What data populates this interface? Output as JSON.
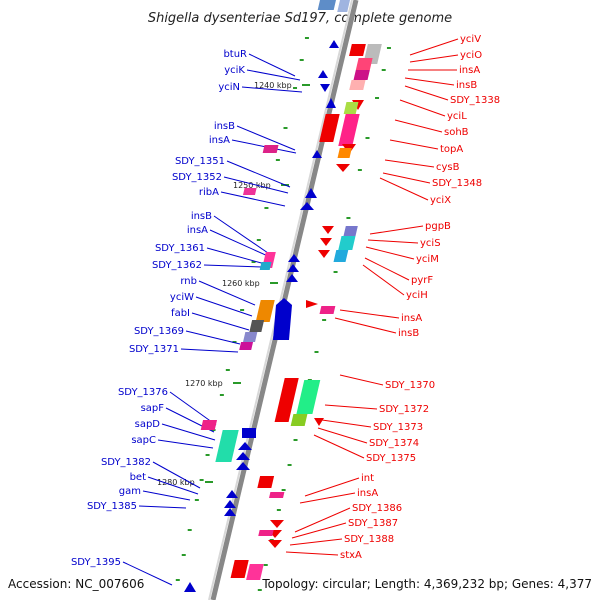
{
  "title": "Shigella dysenteriae Sd197, complete genome",
  "footer": {
    "accession": "Accession: NC_007606",
    "topology": "Topology: circular; Length: 4,369,232 bp; Genes: 4,377"
  },
  "colors": {
    "left_strand": "#0000cc",
    "right_strand": "#ee0000",
    "backbone": "#888888",
    "ticks": "#2a9a2a"
  },
  "ruler": [
    "1240 kbp",
    "1250 kbp",
    "1260 kbp",
    "1270 kbp",
    "1280 kbp"
  ],
  "left_genes": [
    "btuR",
    "yciK",
    "yciN",
    "insB",
    "insA",
    "SDY_1351",
    "SDY_1352",
    "ribA",
    "insB",
    "insA",
    "SDY_1361",
    "SDY_1362",
    "rnb",
    "yciW",
    "fabI",
    "SDY_1369",
    "SDY_1371",
    "SDY_1376",
    "sapF",
    "sapD",
    "sapC",
    "SDY_1382",
    "bet",
    "gam",
    "SDY_1385",
    "SDY_1395"
  ],
  "right_genes": [
    "yciV",
    "yciO",
    "insA",
    "insB",
    "SDY_1338",
    "yciL",
    "sohB",
    "topA",
    "cysB",
    "SDY_1348",
    "yciX",
    "pgpB",
    "yciS",
    "yciM",
    "pyrF",
    "yciH",
    "insA",
    "insB",
    "SDY_1370",
    "SDY_1372",
    "SDY_1373",
    "SDY_1374",
    "SDY_1375",
    "int",
    "insA",
    "SDY_1386",
    "SDY_1387",
    "SDY_1388",
    "stxA"
  ]
}
